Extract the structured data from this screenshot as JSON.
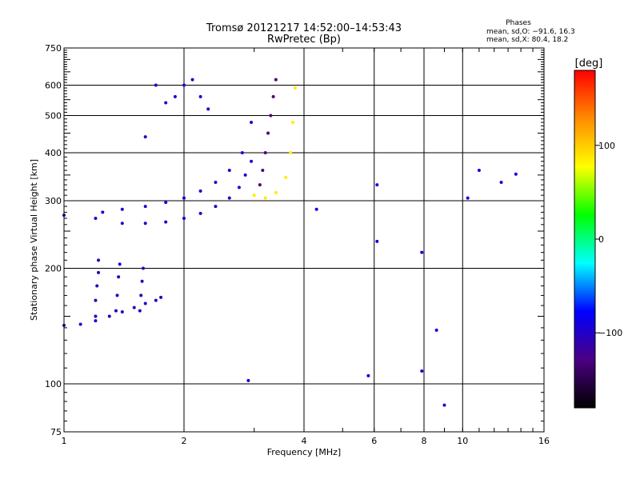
{
  "chart_data": {
    "type": "scatter",
    "title": "Tromsø 20121217 14:52:00–14:53:43",
    "subtitle": "RwPretec (Bp)",
    "xlabel": "Frequency [MHz]",
    "ylabel": "Stationary phase Virtual Height [km]",
    "x_scale": "log",
    "y_scale": "log",
    "xlim": [
      1,
      16
    ],
    "ylim": [
      75,
      750
    ],
    "x_ticks": [
      1,
      2,
      4,
      6,
      8,
      10,
      16
    ],
    "y_ticks": [
      75,
      100,
      200,
      300,
      400,
      500,
      600,
      750
    ],
    "grid": true,
    "stats": {
      "heading": "Phases",
      "line1": "mean, sd,O: −91.6, 16.3",
      "line2": "mean, sd,X:  80.4, 18.2"
    },
    "colorbar": {
      "label": "[deg]",
      "range": [
        -180,
        180
      ],
      "ticks": [
        100,
        0,
        -100
      ],
      "stops": [
        "#000000",
        "#4b0082",
        "#0000ff",
        "#00ffff",
        "#00ff00",
        "#ffff00",
        "#ff8c00",
        "#ff0000"
      ]
    },
    "series": [
      {
        "desc": "low-layer trace",
        "x": [
          1.0,
          1.1,
          1.2,
          1.3,
          1.4,
          1.5,
          1.6,
          1.7,
          1.75
        ],
        "y": [
          142,
          143,
          146,
          150,
          154,
          158,
          162,
          165,
          168
        ],
        "phase": -100
      },
      {
        "desc": "low-layer spread 1.2 MHz",
        "x": [
          1.2,
          1.2,
          1.21,
          1.22,
          1.22
        ],
        "y": [
          150,
          165,
          180,
          195,
          210
        ],
        "phase": -105
      },
      {
        "desc": "low-layer spread 1.35 MHz",
        "x": [
          1.35,
          1.36,
          1.37,
          1.38
        ],
        "y": [
          155,
          170,
          190,
          205
        ],
        "phase": -100
      },
      {
        "desc": "low-layer spread 1.55 MHz",
        "x": [
          1.55,
          1.56,
          1.57,
          1.58
        ],
        "y": [
          155,
          170,
          185,
          200
        ],
        "phase": -105
      },
      {
        "desc": "main trace lower",
        "x": [
          1.0,
          1.2,
          1.4,
          1.6,
          1.8,
          2.0,
          2.2,
          2.4,
          2.6,
          2.75,
          2.85,
          2.95
        ],
        "y": [
          275,
          270,
          262,
          262,
          264,
          270,
          278,
          290,
          305,
          325,
          350,
          380
        ],
        "phase": -100
      },
      {
        "desc": "main trace upper",
        "x": [
          1.25,
          1.4,
          1.6,
          1.8,
          2.0,
          2.2,
          2.4,
          2.6,
          2.8,
          2.95
        ],
        "y": [
          280,
          285,
          290,
          297,
          305,
          318,
          335,
          360,
          400,
          480
        ],
        "phase": -95
      },
      {
        "desc": "spread 1.6-2.3 MHz",
        "x": [
          1.6,
          1.7,
          1.8,
          1.9,
          2.0,
          2.1,
          2.2,
          2.3
        ],
        "y": [
          440,
          600,
          540,
          560,
          600,
          620,
          560,
          520
        ],
        "phase": -100
      },
      {
        "desc": "O trace column",
        "x": [
          3.1,
          3.15,
          3.2,
          3.25,
          3.3,
          3.35,
          3.4
        ],
        "y": [
          330,
          360,
          400,
          450,
          500,
          560,
          620
        ],
        "phase": -130
      },
      {
        "desc": "X trace column",
        "x": [
          3.0,
          3.2,
          3.4,
          3.6,
          3.7,
          3.75,
          3.8
        ],
        "y": [
          310,
          305,
          315,
          345,
          400,
          480,
          590
        ],
        "phase": 85
      },
      {
        "desc": "scattered points",
        "x": [
          2.9,
          5.8,
          6.1,
          6.1,
          7.9,
          7.9,
          8.6,
          9.0,
          10.3,
          11.0,
          12.5,
          13.6,
          4.3
        ],
        "y": [
          102,
          105,
          330,
          235,
          108,
          220,
          138,
          88,
          305,
          360,
          335,
          352,
          285
        ],
        "phase": -90
      }
    ]
  }
}
